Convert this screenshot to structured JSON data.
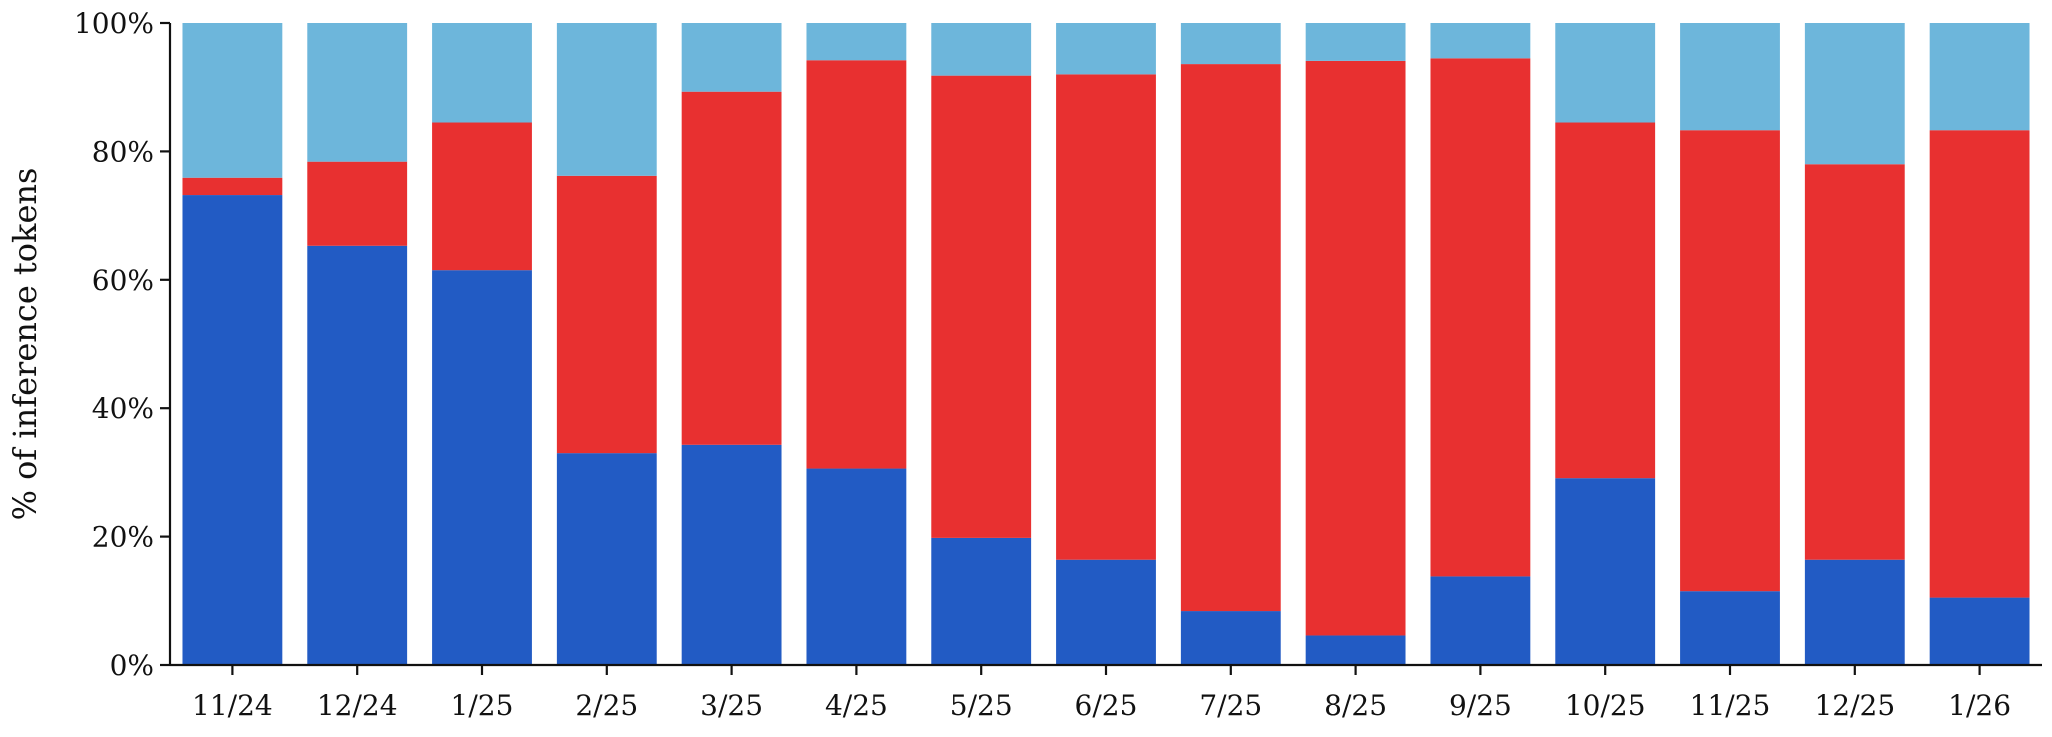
{
  "chart_data": {
    "type": "bar",
    "stacked": true,
    "title": "",
    "xlabel": "",
    "ylabel": "% of inference tokens",
    "ylim": [
      0,
      100
    ],
    "y_ticks": [
      "0%",
      "20%",
      "40%",
      "60%",
      "80%",
      "100%"
    ],
    "categories": [
      "11/24",
      "12/24",
      "1/25",
      "2/25",
      "3/25",
      "4/25",
      "5/25",
      "6/25",
      "7/25",
      "8/25",
      "9/25",
      "10/25",
      "11/25",
      "12/25",
      "1/26"
    ],
    "series": [
      {
        "color": "#225bc4",
        "values": [
          73.2,
          65.3,
          61.5,
          33.0,
          34.3,
          30.6,
          19.8,
          16.4,
          8.4,
          4.6,
          13.8,
          29.1,
          11.5,
          16.4,
          10.5
        ]
      },
      {
        "color": "#e83030",
        "values": [
          2.7,
          13.1,
          23.0,
          43.2,
          55.0,
          63.6,
          72.0,
          75.6,
          85.2,
          89.5,
          80.7,
          55.4,
          71.8,
          61.6,
          72.8
        ]
      },
      {
        "color": "#6db6db",
        "values": [
          24.1,
          21.6,
          15.5,
          23.8,
          10.7,
          5.8,
          8.2,
          8.0,
          6.4,
          5.9,
          5.5,
          15.5,
          16.7,
          22.0,
          16.7
        ]
      }
    ],
    "grid": false,
    "legend": "none"
  }
}
